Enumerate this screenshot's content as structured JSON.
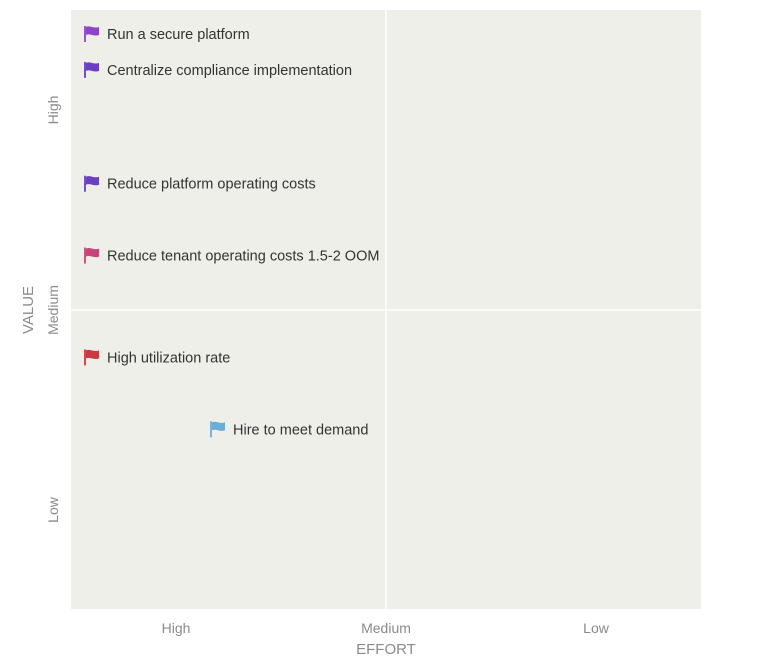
{
  "chart_data": {
    "type": "scatter",
    "title": "",
    "xlabel": "EFFORT",
    "ylabel": "VALUE",
    "x_ticks": [
      "High",
      "Medium",
      "Low"
    ],
    "y_ticks": [
      "High",
      "Medium",
      "Low"
    ],
    "xlim": [
      0,
      3
    ],
    "ylim": [
      0,
      3
    ],
    "grid": "quadrants",
    "points": [
      {
        "label": "Run a secure platform",
        "x": 0.1,
        "y": 2.88,
        "color": "#8e44c9"
      },
      {
        "label": "Centralize compliance implementation",
        "x": 0.1,
        "y": 2.7,
        "color": "#6a3fc4"
      },
      {
        "label": "Reduce platform operating costs",
        "x": 0.1,
        "y": 2.13,
        "color": "#6a3fc4"
      },
      {
        "label": "Reduce tenant operating costs 1.5-2 OOM",
        "x": 0.1,
        "y": 1.77,
        "color": "#c8437a"
      },
      {
        "label": "High utilization rate",
        "x": 0.1,
        "y": 1.26,
        "color": "#c9393e"
      },
      {
        "label": "Hire to meet demand",
        "x": 0.7,
        "y": 0.9,
        "color": "#6aaed6"
      }
    ]
  },
  "colors": {
    "plot_background": "#efefe9",
    "grid_line": "#ffffff",
    "tick_text": "#8a8a8a",
    "label_text": "#333333"
  }
}
